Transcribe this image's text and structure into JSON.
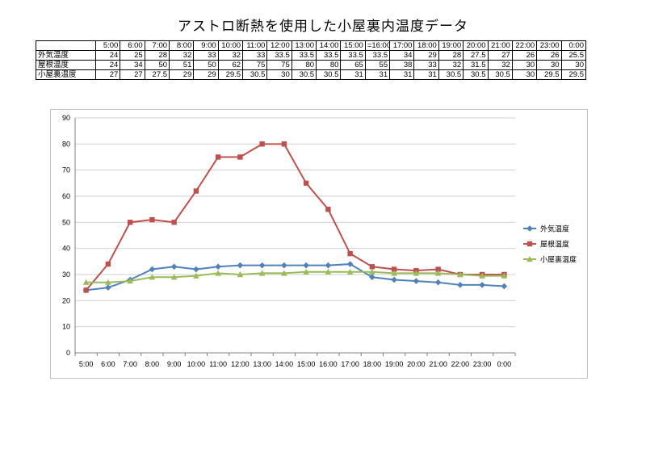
{
  "title": "アストロ断熱を使用した小屋裏内温度データ",
  "chart_data": {
    "type": "line",
    "categories": [
      "5:00",
      "6:00",
      "7:00",
      "8:00",
      "9:00",
      "10:00",
      "11:00",
      "12:00",
      "13:00",
      "14:00",
      "15:00",
      "16:00",
      "17:00",
      "18:00",
      "19:00",
      "20:00",
      "21:00",
      "22:00",
      "23:00",
      "0:00"
    ],
    "table_categories": [
      "5:00",
      "6:00",
      "7:00",
      "8:00",
      "9:00",
      "10:00",
      "11:00",
      "12:00",
      "13:00",
      "14:00",
      "15:00",
      "=16:00",
      "17:00",
      "18:00",
      "19:00",
      "20:00",
      "21:00",
      "22:00",
      "23:00",
      "0:00"
    ],
    "table_values": [
      [
        "24",
        "25",
        "28",
        "32",
        "33",
        "32",
        "33",
        "33.5",
        "33.5",
        "33.5",
        "33.5",
        "33.5",
        "34",
        "29",
        "28",
        "27.5",
        "27",
        "26",
        "26",
        "25.5"
      ],
      [
        "24",
        "34",
        "50",
        "51",
        "50",
        "62",
        "75",
        "75",
        "80",
        "80",
        "65",
        "55",
        "38",
        "33",
        "32",
        "31.5",
        "32",
        "30",
        "30",
        "30"
      ],
      [
        "27",
        "27",
        "27.5",
        "29",
        "29",
        "29.5",
        "30.5",
        "30",
        "30.5",
        "30.5",
        "31",
        "31",
        "31",
        "31",
        "30.5",
        "30.5",
        "30.5",
        "30",
        "29.5",
        "29.5"
      ]
    ],
    "series": [
      {
        "name": "外気温度",
        "color": "#4f81bd",
        "marker": "diamond",
        "values": [
          24,
          25,
          28,
          32,
          33,
          32,
          33,
          33.5,
          33.5,
          33.5,
          33.5,
          33.5,
          34,
          29,
          28,
          27.5,
          27,
          26,
          26,
          25.5
        ]
      },
      {
        "name": "屋根温度",
        "color": "#c0504d",
        "marker": "square",
        "values": [
          24,
          34,
          50,
          51,
          50,
          62,
          75,
          75,
          80,
          80,
          65,
          55,
          38,
          33,
          32,
          31.5,
          32,
          30,
          30,
          30
        ]
      },
      {
        "name": "小屋裏温度",
        "color": "#9bbb59",
        "marker": "triangle",
        "values": [
          27,
          27,
          27.5,
          29,
          29,
          29.5,
          30.5,
          30,
          30.5,
          30.5,
          31,
          31,
          31,
          31,
          30.5,
          30.5,
          30.5,
          30,
          29.5,
          29.5
        ]
      }
    ],
    "ylim": [
      0,
      90
    ],
    "yticks": [
      "0",
      "10",
      "20",
      "30",
      "40",
      "50",
      "60",
      "70",
      "80",
      "90"
    ],
    "grid": true,
    "legend": "right"
  }
}
